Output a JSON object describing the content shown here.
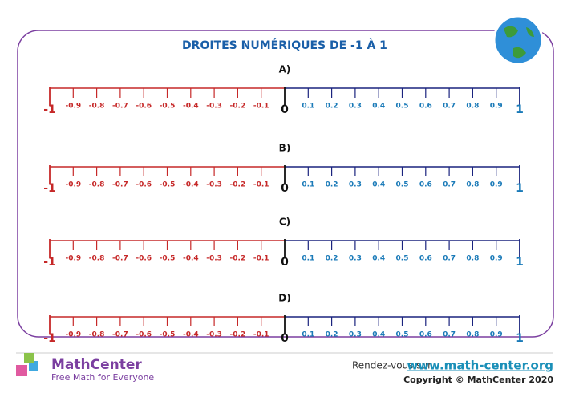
{
  "header": {
    "title": "DROITES NUMÉRIQUES DE -1 À 1"
  },
  "lines": [
    {
      "label": "A)"
    },
    {
      "label": "B)"
    },
    {
      "label": "C)"
    },
    {
      "label": "D)"
    }
  ],
  "tick_labels": [
    "-1",
    "-0.9",
    "-0.8",
    "-0.7",
    "-0.6",
    "-0.5",
    "-0.4",
    "-0.3",
    "-0.2",
    "-0.1",
    "0",
    "0.1",
    "0.2",
    "0.3",
    "0.4",
    "0.5",
    "0.6",
    "0.7",
    "0.8",
    "0.9",
    "1"
  ],
  "footer": {
    "brand": "MathCenter",
    "tagline": "Free Math for Everyone",
    "visit": "Rendez-vous sur",
    "url": "www.math-center.org",
    "copyright": "Copyright © MathCenter 2020"
  }
}
